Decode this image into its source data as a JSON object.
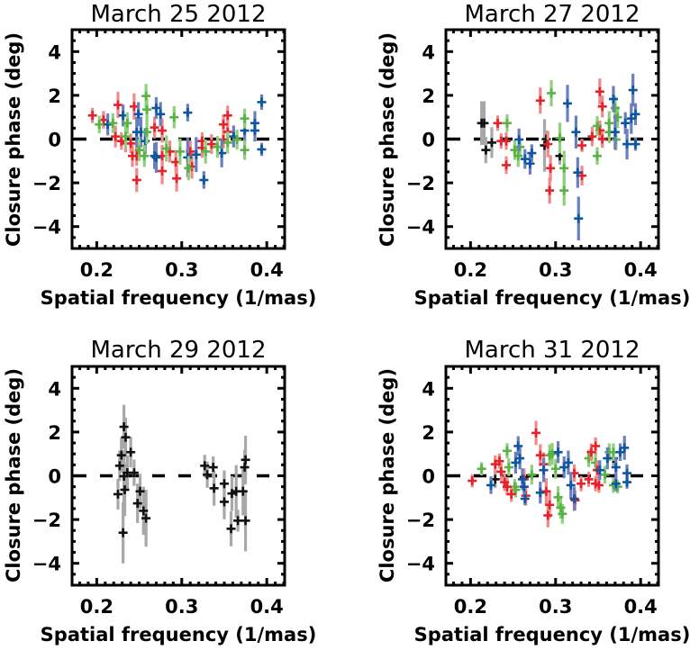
{
  "figure": {
    "colors": {
      "red": "#e8202a",
      "red_err": "#f08a8a",
      "green": "#58b244",
      "green_err": "#8fd07a",
      "blue": "#0e56a0",
      "blue_err": "#6a7fc0",
      "black": "#111111",
      "black_err": "#a8a8a8",
      "axis": "#000000",
      "zero_line": "#000000"
    }
  },
  "chart_data": [
    {
      "type": "scatter",
      "title": "March 25 2012",
      "xlabel": "Spatial frequency (1/mas)",
      "ylabel": "Closure phase (deg)",
      "xlim": [
        0.171,
        0.421
      ],
      "ylim": [
        -5,
        5
      ],
      "xticks": [
        "0.2",
        "0.3",
        "0.4"
      ],
      "xtick_values": [
        0.2,
        0.3,
        0.4
      ],
      "yticks": [
        "-4",
        "-2",
        "0",
        "2",
        "4"
      ],
      "ytick_values": [
        -4,
        -2,
        0,
        2,
        4
      ],
      "zero_line": {
        "style": "dashed",
        "y": 0
      },
      "grid": false,
      "error_bars": true,
      "series": [
        {
          "name": "red",
          "color_key": "red",
          "x": [
            0.195,
            0.208,
            0.225,
            0.222,
            0.229,
            0.234,
            0.24,
            0.244,
            0.242,
            0.247,
            0.247,
            0.268,
            0.277,
            0.277,
            0.277,
            0.286,
            0.293,
            0.294,
            0.31,
            0.312,
            0.324,
            0.324,
            0.335,
            0.349,
            0.354,
            0.349,
            0.354
          ],
          "y": [
            1.08,
            0.88,
            1.56,
            0.12,
            -0.09,
            -0.2,
            -0.2,
            1.49,
            -0.77,
            -0.77,
            -1.87,
            0.53,
            0.39,
            -0.77,
            -1.46,
            -0.57,
            -1.05,
            -1.8,
            -0.57,
            -1.26,
            -0.09,
            -0.4,
            -0.23,
            0.67,
            1.08,
            -0.02,
            0.33
          ],
          "err": [
            0.35,
            0.4,
            0.6,
            0.5,
            0.4,
            0.4,
            0.45,
            0.6,
            0.5,
            0.45,
            0.55,
            0.5,
            0.55,
            0.5,
            0.6,
            0.5,
            0.55,
            0.6,
            0.5,
            0.55,
            0.4,
            0.45,
            0.45,
            0.45,
            0.45,
            0.4,
            0.5
          ]
        },
        {
          "name": "blue",
          "color_key": "blue",
          "x": [
            0.213,
            0.231,
            0.249,
            0.247,
            0.252,
            0.257,
            0.27,
            0.275,
            0.27,
            0.268,
            0.307,
            0.307,
            0.317,
            0.326,
            0.347,
            0.361,
            0.374,
            0.386,
            0.386,
            0.394,
            0.394
          ],
          "y": [
            0.67,
            1.08,
            1.14,
            0.32,
            0.32,
            -0.09,
            1.42,
            1.14,
            -0.84,
            -0.77,
            1.21,
            -0.84,
            -0.71,
            -1.87,
            -0.64,
            0.12,
            0.39,
            0.73,
            0.39,
            1.69,
            -0.47
          ],
          "err": [
            0.5,
            0.5,
            0.55,
            0.7,
            0.7,
            0.6,
            0.5,
            0.55,
            0.7,
            0.6,
            0.4,
            0.9,
            0.8,
            0.4,
            0.65,
            0.5,
            0.6,
            0.55,
            0.5,
            0.35,
            0.3
          ]
        },
        {
          "name": "green",
          "color_key": "green",
          "x": [
            0.203,
            0.219,
            0.236,
            0.234,
            0.25,
            0.256,
            0.258,
            0.259,
            0.259,
            0.291,
            0.282,
            0.298,
            0.308,
            0.328,
            0.342,
            0.354,
            0.365,
            0.374,
            0.374
          ],
          "y": [
            0.67,
            0.73,
            0.73,
            0.12,
            -0.5,
            -0.77,
            1.97,
            1.35,
            0.32,
            1.0,
            -0.43,
            -0.57,
            -1.33,
            -0.57,
            -0.36,
            -0.16,
            -0.02,
            0.94,
            -0.5
          ],
          "err": [
            0.4,
            0.45,
            0.5,
            0.55,
            0.5,
            0.5,
            0.55,
            0.5,
            0.55,
            0.5,
            0.6,
            0.6,
            0.55,
            0.55,
            0.5,
            0.5,
            0.45,
            0.45,
            0.45
          ]
        }
      ]
    },
    {
      "type": "scatter",
      "title": "March 27 2012",
      "xlabel": "Spatial frequency (1/mas)",
      "ylabel": "Closure phase (deg)",
      "xlim": [
        0.171,
        0.421
      ],
      "ylim": [
        -5,
        5
      ],
      "xticks": [
        "0.2",
        "0.3",
        "0.4"
      ],
      "xtick_values": [
        0.2,
        0.3,
        0.4
      ],
      "yticks": [
        "-4",
        "-2",
        "0",
        "2",
        "4"
      ],
      "ytick_values": [
        -4,
        -2,
        0,
        2,
        4
      ],
      "zero_line": {
        "style": "dashed",
        "y": 0
      },
      "grid": false,
      "error_bars": true,
      "series": [
        {
          "name": "black",
          "color_key": "black",
          "x": [
            0.213,
            0.216,
            0.218,
            0.225,
            0.287,
            0.289,
            0.305
          ],
          "y": [
            0.73,
            0.73,
            -0.5,
            -0.16,
            -0.29,
            0.0,
            -0.77
          ],
          "err": [
            1.0,
            1.0,
            0.6,
            0.7,
            1.2,
            0.4,
            0.4
          ]
        },
        {
          "name": "red",
          "color_key": "red",
          "x": [
            0.232,
            0.236,
            0.242,
            0.242,
            0.282,
            0.291,
            0.294,
            0.293,
            0.331,
            0.331,
            0.343,
            0.352,
            0.355,
            0.352,
            0.355
          ],
          "y": [
            0.73,
            -0.09,
            -0.09,
            -1.19,
            1.76,
            -0.23,
            -1.33,
            -2.35,
            -0.29,
            -1.67,
            0.12,
            2.17,
            1.49,
            0.4,
            0.0
          ],
          "err": [
            0.35,
            0.35,
            0.4,
            0.4,
            0.6,
            0.6,
            0.6,
            0.6,
            0.3,
            0.45,
            0.45,
            0.6,
            0.5,
            0.45,
            0.4
          ]
        },
        {
          "name": "green",
          "color_key": "green",
          "x": [
            0.243,
            0.252,
            0.256,
            0.258,
            0.295,
            0.305,
            0.31,
            0.31,
            0.349,
            0.349,
            0.363,
            0.363,
            0.37,
            0.373,
            0.371
          ],
          "y": [
            0.73,
            -0.5,
            -0.77,
            -0.36,
            2.1,
            0.05,
            -1.33,
            -2.35,
            0.6,
            -0.77,
            0.73,
            0.32,
            1.42,
            1.0,
            -0.02
          ],
          "err": [
            0.4,
            0.45,
            0.5,
            0.4,
            0.6,
            0.7,
            0.8,
            0.7,
            0.45,
            0.4,
            0.55,
            0.5,
            0.55,
            0.5,
            0.5
          ]
        },
        {
          "name": "blue",
          "color_key": "blue",
          "x": [
            0.257,
            0.264,
            0.27,
            0.272,
            0.314,
            0.324,
            0.326,
            0.327,
            0.368,
            0.37,
            0.382,
            0.384,
            0.391,
            0.389,
            0.394,
            0.394
          ],
          "y": [
            -0.02,
            -0.91,
            -1.12,
            -0.64,
            1.63,
            0.32,
            -1.53,
            -3.63,
            1.83,
            0.32,
            0.73,
            -0.23,
            2.24,
            0.94,
            1.14,
            -0.23
          ],
          "err": [
            0.5,
            0.45,
            0.5,
            0.4,
            0.85,
            0.75,
            0.7,
            1.0,
            0.6,
            0.8,
            0.5,
            0.7,
            0.75,
            0.7,
            0.5,
            0.3
          ]
        }
      ]
    },
    {
      "type": "scatter",
      "title": "March 29 2012",
      "xlabel": "Spatial frequency (1/mas)",
      "ylabel": "Closure phase (deg)",
      "xlim": [
        0.171,
        0.421
      ],
      "ylim": [
        -5,
        5
      ],
      "xticks": [
        "0.2",
        "0.3",
        "0.4"
      ],
      "xtick_values": [
        0.2,
        0.3,
        0.4
      ],
      "yticks": [
        "-4",
        "-2",
        "0",
        "2",
        "4"
      ],
      "ytick_values": [
        -4,
        -2,
        0,
        2,
        4
      ],
      "zero_line": {
        "style": "dashed",
        "y": 0
      },
      "grid": false,
      "error_bars": true,
      "series": [
        {
          "name": "black",
          "color_key": "black",
          "x": [
            0.225,
            0.227,
            0.229,
            0.232,
            0.234,
            0.232,
            0.233,
            0.231,
            0.24,
            0.236,
            0.244,
            0.248,
            0.251,
            0.255,
            0.258,
            0.327,
            0.33,
            0.337,
            0.338,
            0.35,
            0.35,
            0.359,
            0.358,
            0.364,
            0.366,
            0.372,
            0.374,
            0.375,
            0.375
          ],
          "y": [
            -0.84,
            0.46,
            0.94,
            2.24,
            1.76,
            -0.02,
            -0.64,
            -2.6,
            1.08,
            0.14,
            0.14,
            -1.26,
            -0.71,
            -1.6,
            -1.94,
            0.46,
            0.05,
            0.39,
            -0.57,
            -0.36,
            -1.19,
            -0.81,
            -2.42,
            -0.71,
            -2.05,
            -0.71,
            0.39,
            0.73,
            -2.05
          ],
          "err": [
            0.7,
            0.7,
            0.8,
            1.0,
            0.9,
            1.2,
            1.2,
            1.4,
            0.7,
            0.8,
            0.6,
            0.9,
            0.8,
            1.1,
            1.3,
            0.5,
            0.6,
            0.5,
            0.8,
            0.6,
            0.8,
            0.8,
            0.8,
            1.2,
            0.5,
            1.1,
            0.8,
            1.1,
            1.4
          ]
        }
      ]
    },
    {
      "type": "scatter",
      "title": "March 31 2012",
      "xlabel": "Spatial frequency (1/mas)",
      "ylabel": "Closure phase (deg)",
      "xlim": [
        0.171,
        0.421
      ],
      "ylim": [
        -5,
        5
      ],
      "xticks": [
        "0.2",
        "0.3",
        "0.4"
      ],
      "xtick_values": [
        0.2,
        0.3,
        0.4
      ],
      "yticks": [
        "-4",
        "-2",
        "0",
        "2",
        "4"
      ],
      "ytick_values": [
        -4,
        -2,
        0,
        2,
        4
      ],
      "zero_line": {
        "style": "dashed",
        "y": 0
      },
      "grid": false,
      "error_bars": true,
      "series": [
        {
          "name": "black",
          "color_key": "black",
          "x": [
            0.229,
            0.263,
            0.368
          ],
          "y": [
            -0.16,
            -0.06,
            0.8
          ],
          "err": [
            0.4,
            0.35,
            0.35
          ]
        },
        {
          "name": "green",
          "color_key": "green",
          "x": [
            0.213,
            0.243,
            0.245,
            0.252,
            0.253,
            0.272,
            0.293,
            0.296,
            0.3,
            0.303,
            0.306,
            0.308,
            0.339,
            0.347,
            0.358,
            0.363,
            0.368,
            0.368,
            0.373
          ],
          "y": [
            0.32,
            1.14,
            0.39,
            -0.5,
            -0.64,
            0.05,
            0.94,
            1.0,
            0.32,
            -0.98,
            -1.46,
            -1.74,
            0.8,
            0.6,
            0.05,
            1.08,
            1.08,
            -0.43,
            -0.5
          ],
          "err": [
            0.3,
            0.35,
            0.4,
            0.35,
            0.35,
            0.45,
            0.5,
            0.5,
            0.45,
            0.5,
            0.5,
            0.45,
            0.4,
            0.4,
            0.4,
            0.4,
            0.4,
            0.35,
            0.3
          ]
        },
        {
          "name": "red",
          "color_key": "red",
          "x": [
            0.202,
            0.229,
            0.234,
            0.236,
            0.24,
            0.243,
            0.248,
            0.263,
            0.265,
            0.277,
            0.282,
            0.286,
            0.289,
            0.293,
            0.291,
            0.322,
            0.323,
            0.33,
            0.339,
            0.342,
            0.347,
            0.349,
            0.347,
            0.351
          ],
          "y": [
            -0.23,
            0.53,
            0.67,
            0.19,
            -0.29,
            -0.5,
            -0.84,
            -0.16,
            -0.91,
            1.96,
            0.94,
            0.53,
            -0.71,
            -1.33,
            -1.81,
            0.12,
            -1.12,
            -0.36,
            -0.16,
            1.08,
            1.36,
            0.26,
            -0.36,
            -0.43
          ],
          "err": [
            0.3,
            0.4,
            0.35,
            0.4,
            0.4,
            0.4,
            0.35,
            0.5,
            0.45,
            0.55,
            0.5,
            0.55,
            0.6,
            0.6,
            0.55,
            0.4,
            0.45,
            0.35,
            0.35,
            0.4,
            0.4,
            0.45,
            0.35,
            0.35
          ]
        },
        {
          "name": "blue",
          "color_key": "blue",
          "x": [
            0.224,
            0.253,
            0.256,
            0.258,
            0.261,
            0.263,
            0.264,
            0.282,
            0.286,
            0.303,
            0.31,
            0.315,
            0.318,
            0.322,
            0.352,
            0.361,
            0.371,
            0.371,
            0.376,
            0.381,
            0.384,
            0.384
          ],
          "y": [
            -0.43,
            0.6,
            1.36,
            0.8,
            -0.16,
            -0.5,
            -1.05,
            -0.77,
            0.26,
            1.08,
            0.39,
            0.6,
            -0.43,
            -1.05,
            0.26,
            0.8,
            0.39,
            -0.36,
            1.08,
            1.28,
            0.12,
            -0.29
          ],
          "err": [
            0.4,
            0.5,
            0.45,
            0.5,
            0.5,
            0.4,
            0.3,
            0.5,
            0.55,
            0.5,
            0.5,
            0.55,
            0.6,
            0.55,
            0.45,
            0.5,
            0.45,
            0.35,
            0.4,
            0.55,
            0.4,
            0.3
          ]
        }
      ]
    }
  ],
  "panels": [
    {
      "title": "March 25 2012",
      "xlabel": "Spatial frequency (1/mas)",
      "ylabel": "Closure phase (deg)"
    },
    {
      "title": "March 27 2012",
      "xlabel": "Spatial frequency (1/mas)",
      "ylabel": "Closure phase (deg)"
    },
    {
      "title": "March 29 2012",
      "xlabel": "Spatial frequency (1/mas)",
      "ylabel": "Closure phase (deg)"
    },
    {
      "title": "March 31 2012",
      "xlabel": "Spatial frequency (1/mas)",
      "ylabel": "Closure phase (deg)"
    }
  ]
}
